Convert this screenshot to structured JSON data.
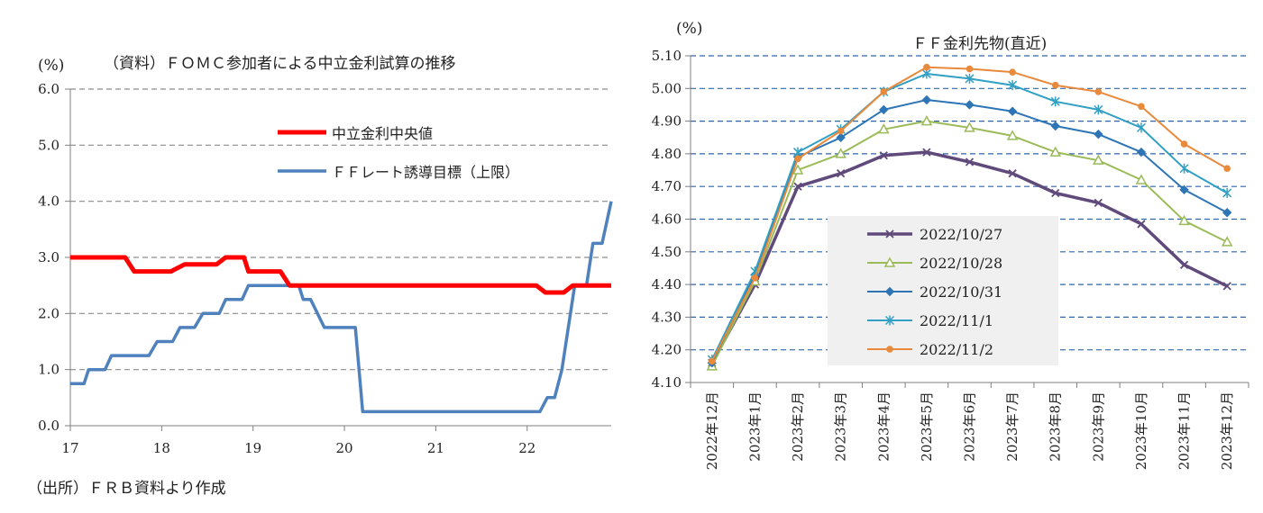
{
  "chart_data": [
    {
      "type": "line",
      "title": "（資料）ＦＯＭＣ参加者による中立金利試算の推移",
      "yunit": "(%)",
      "source": "（出所）ＦＲＢ資料より作成",
      "ylim": [
        0,
        6
      ],
      "xlim": [
        17,
        22.92
      ],
      "yticks": [
        "6.0",
        "5.0",
        "4.0",
        "3.0",
        "2.0",
        "1.0",
        "0.0"
      ],
      "xticks": [
        "17",
        "18",
        "19",
        "20",
        "21",
        "22"
      ],
      "grid": true,
      "legend_position": "top-right",
      "series": [
        {
          "name": "中立金利中央値",
          "color": "#ff0000",
          "points": [
            [
              17.0,
              3.0
            ],
            [
              17.6,
              3.0
            ],
            [
              17.7,
              2.75
            ],
            [
              18.1,
              2.75
            ],
            [
              18.25,
              2.875
            ],
            [
              18.6,
              2.875
            ],
            [
              18.7,
              3.0
            ],
            [
              18.9,
              3.0
            ],
            [
              18.95,
              2.75
            ],
            [
              19.3,
              2.75
            ],
            [
              19.4,
              2.5
            ],
            [
              22.1,
              2.5
            ],
            [
              22.2,
              2.375
            ],
            [
              22.4,
              2.375
            ],
            [
              22.5,
              2.5
            ],
            [
              22.92,
              2.5
            ]
          ]
        },
        {
          "name": "ＦＦレート誘導目標（上限）",
          "color": "#4f81bd",
          "points": [
            [
              17.0,
              0.75
            ],
            [
              17.15,
              0.75
            ],
            [
              17.2,
              1.0
            ],
            [
              17.38,
              1.0
            ],
            [
              17.45,
              1.25
            ],
            [
              17.86,
              1.25
            ],
            [
              17.95,
              1.5
            ],
            [
              18.12,
              1.5
            ],
            [
              18.2,
              1.75
            ],
            [
              18.36,
              1.75
            ],
            [
              18.45,
              2.0
            ],
            [
              18.63,
              2.0
            ],
            [
              18.7,
              2.25
            ],
            [
              18.88,
              2.25
            ],
            [
              18.95,
              2.5
            ],
            [
              19.5,
              2.5
            ],
            [
              19.55,
              2.25
            ],
            [
              19.63,
              2.25
            ],
            [
              19.78,
              1.75
            ],
            [
              20.12,
              1.75
            ],
            [
              20.2,
              0.25
            ],
            [
              22.14,
              0.25
            ],
            [
              22.22,
              0.5
            ],
            [
              22.3,
              0.5
            ],
            [
              22.38,
              1.0
            ],
            [
              22.45,
              1.75
            ],
            [
              22.52,
              2.5
            ],
            [
              22.65,
              2.5
            ],
            [
              22.72,
              3.25
            ],
            [
              22.82,
              3.25
            ],
            [
              22.92,
              4.0
            ]
          ]
        }
      ]
    },
    {
      "type": "line",
      "title": "ＦＦ金利先物(直近)",
      "yunit": "(%)",
      "ylim": [
        4.1,
        5.1
      ],
      "yticks": [
        "5.10",
        "5.00",
        "4.90",
        "4.80",
        "4.70",
        "4.60",
        "4.50",
        "4.40",
        "4.30",
        "4.20",
        "4.10"
      ],
      "categories": [
        "2022年12月",
        "2023年1月",
        "2023年2月",
        "2023年3月",
        "2023年4月",
        "2023年5月",
        "2023年6月",
        "2023年7月",
        "2023年8月",
        "2023年9月",
        "2023年10月",
        "2023年11月",
        "2023年12月"
      ],
      "grid": true,
      "legend_position": "center-left",
      "series": [
        {
          "name": "2022/10/27",
          "color": "#604a7b",
          "marker": "x",
          "values": [
            4.16,
            4.4,
            4.7,
            4.74,
            4.795,
            4.805,
            4.775,
            4.74,
            4.68,
            4.65,
            4.585,
            4.46,
            4.395
          ]
        },
        {
          "name": "2022/10/28",
          "color": "#9bbb59",
          "marker": "triangle",
          "values": [
            4.15,
            4.41,
            4.75,
            4.8,
            4.875,
            4.9,
            4.88,
            4.855,
            4.805,
            4.78,
            4.72,
            4.595,
            4.53
          ]
        },
        {
          "name": "2022/10/31",
          "color": "#2e75b6",
          "marker": "diamond",
          "values": [
            4.16,
            4.43,
            4.79,
            4.85,
            4.935,
            4.965,
            4.95,
            4.93,
            4.885,
            4.86,
            4.805,
            4.69,
            4.62
          ]
        },
        {
          "name": "2022/11/1",
          "color": "#31a0c4",
          "marker": "star",
          "values": [
            4.17,
            4.44,
            4.805,
            4.875,
            4.99,
            5.045,
            5.03,
            5.01,
            4.96,
            4.935,
            4.88,
            4.755,
            4.68
          ]
        },
        {
          "name": "2022/11/2",
          "color": "#e8893b",
          "marker": "circle",
          "values": [
            4.165,
            4.42,
            4.785,
            4.87,
            4.99,
            5.065,
            5.06,
            5.05,
            5.01,
            4.99,
            4.945,
            4.83,
            4.755
          ]
        }
      ]
    }
  ]
}
